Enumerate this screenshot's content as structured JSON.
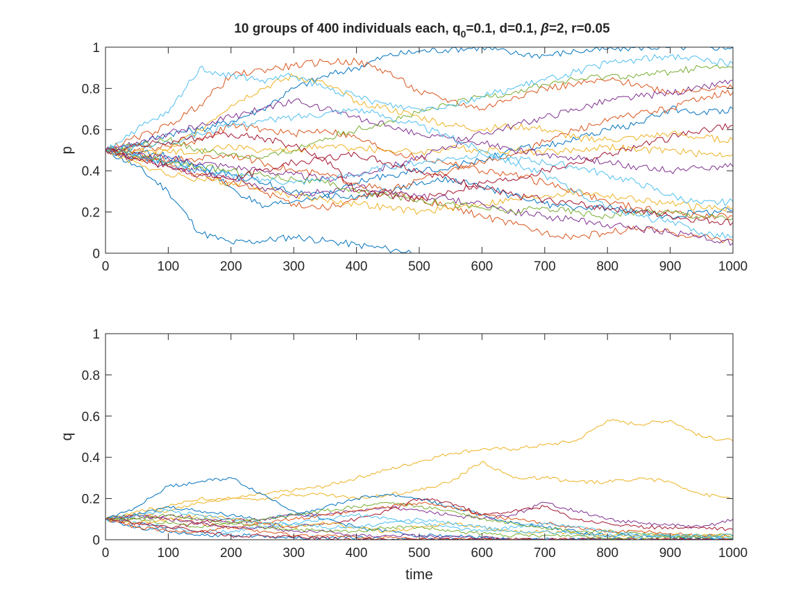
{
  "figure": {
    "title_main": "10 groups of 400 individuals each, q",
    "title_sub": "0",
    "title_rest_1": "=0.1, d=0.1, ",
    "title_beta": "β",
    "title_rest_2": "=2, r=0.05"
  },
  "chart_data": [
    {
      "type": "line",
      "ylabel": "p",
      "xlabel": "",
      "xlim": [
        0,
        1000
      ],
      "ylim": [
        0,
        1
      ],
      "x_ticks": [
        "0",
        "100",
        "200",
        "300",
        "400",
        "500",
        "600",
        "700",
        "800",
        "900",
        "1000"
      ],
      "y_ticks": [
        "0",
        "0.2",
        "0.4",
        "0.6",
        "0.8",
        "1"
      ],
      "grid": false,
      "x": [
        0,
        50,
        100,
        150,
        200,
        250,
        300,
        350,
        400,
        450,
        500,
        550,
        600,
        650,
        700,
        750,
        800,
        850,
        900,
        950,
        1000
      ],
      "series": [
        {
          "color": "#0072BD",
          "values": [
            0.5,
            0.42,
            0.3,
            0.1,
            0.05,
            0.06,
            0.08,
            0.06,
            0.04,
            0.02,
            0.0,
            null,
            null,
            null,
            null,
            null,
            null,
            null,
            null,
            null,
            null
          ]
        },
        {
          "color": "#0072BD",
          "values": [
            0.5,
            0.53,
            0.58,
            0.6,
            0.64,
            0.7,
            0.8,
            0.86,
            0.9,
            0.96,
            0.98,
            0.99,
            1.0,
            0.97,
            0.96,
            0.98,
            0.99,
            1.0,
            1.0,
            1.0,
            1.0
          ]
        },
        {
          "color": "#0072BD",
          "values": [
            0.5,
            0.47,
            0.44,
            0.42,
            0.32,
            0.22,
            0.25,
            0.28,
            0.34,
            0.38,
            0.4,
            0.42,
            0.45,
            0.5,
            0.52,
            0.55,
            0.6,
            0.63,
            0.7,
            0.68,
            0.7
          ]
        },
        {
          "color": "#0072BD",
          "values": [
            0.5,
            0.49,
            0.47,
            0.43,
            0.38,
            0.34,
            0.3,
            0.28,
            0.27,
            0.3,
            0.34,
            0.36,
            0.32,
            0.28,
            0.24,
            0.22,
            0.22,
            0.2,
            0.18,
            0.2,
            0.21
          ]
        },
        {
          "color": "#D95319",
          "values": [
            0.5,
            0.56,
            0.62,
            0.72,
            0.86,
            0.89,
            0.91,
            0.93,
            0.93,
            0.88,
            0.78,
            0.74,
            0.7,
            0.76,
            0.8,
            0.82,
            0.84,
            0.82,
            0.78,
            0.8,
            0.8
          ]
        },
        {
          "color": "#D95319",
          "values": [
            0.5,
            0.5,
            0.52,
            0.55,
            0.62,
            0.6,
            0.58,
            0.6,
            0.56,
            0.5,
            0.46,
            0.44,
            0.4,
            0.38,
            0.34,
            0.3,
            0.25,
            0.22,
            0.2,
            0.18,
            0.18
          ]
        },
        {
          "color": "#D95319",
          "values": [
            0.5,
            0.47,
            0.43,
            0.38,
            0.34,
            0.3,
            0.24,
            0.22,
            0.26,
            0.3,
            0.36,
            0.4,
            0.44,
            0.48,
            0.54,
            0.6,
            0.64,
            0.68,
            0.7,
            0.76,
            0.78
          ]
        },
        {
          "color": "#D95319",
          "values": [
            0.5,
            0.48,
            0.45,
            0.46,
            0.48,
            0.44,
            0.4,
            0.38,
            0.34,
            0.3,
            0.26,
            0.22,
            0.18,
            0.14,
            0.1,
            0.08,
            0.1,
            0.12,
            0.1,
            0.08,
            0.06
          ]
        },
        {
          "color": "#EDB120",
          "values": [
            0.5,
            0.5,
            0.49,
            0.5,
            0.52,
            0.5,
            0.5,
            0.52,
            0.51,
            0.5,
            0.49,
            0.51,
            0.5,
            0.5,
            0.49,
            0.5,
            0.52,
            0.5,
            0.5,
            0.48,
            0.48
          ]
        },
        {
          "color": "#EDB120",
          "values": [
            0.5,
            0.45,
            0.5,
            0.6,
            0.72,
            0.8,
            0.86,
            0.82,
            0.74,
            0.7,
            0.66,
            0.62,
            0.6,
            0.62,
            0.6,
            0.56,
            0.55,
            0.56,
            0.58,
            0.56,
            0.55
          ]
        },
        {
          "color": "#EDB120",
          "values": [
            0.5,
            0.44,
            0.38,
            0.36,
            0.34,
            0.32,
            0.28,
            0.26,
            0.24,
            0.22,
            0.2,
            0.22,
            0.24,
            0.26,
            0.28,
            0.3,
            0.28,
            0.26,
            0.24,
            0.22,
            0.22
          ]
        },
        {
          "color": "#7E2F8E",
          "values": [
            0.5,
            0.54,
            0.58,
            0.62,
            0.66,
            0.7,
            0.74,
            0.7,
            0.66,
            0.62,
            0.58,
            0.56,
            0.54,
            0.5,
            0.48,
            0.46,
            0.44,
            0.42,
            0.4,
            0.42,
            0.42
          ]
        },
        {
          "color": "#7E2F8E",
          "values": [
            0.5,
            0.48,
            0.46,
            0.44,
            0.42,
            0.4,
            0.38,
            0.36,
            0.38,
            0.42,
            0.46,
            0.52,
            0.58,
            0.62,
            0.66,
            0.7,
            0.74,
            0.76,
            0.78,
            0.8,
            0.84
          ]
        },
        {
          "color": "#7E2F8E",
          "values": [
            0.5,
            0.46,
            0.42,
            0.4,
            0.36,
            0.32,
            0.28,
            0.3,
            0.32,
            0.3,
            0.28,
            0.26,
            0.24,
            0.2,
            0.18,
            0.16,
            0.14,
            0.12,
            0.1,
            0.08,
            0.05
          ]
        },
        {
          "color": "#77AC30",
          "values": [
            0.5,
            0.52,
            0.55,
            0.5,
            0.48,
            0.46,
            0.5,
            0.56,
            0.6,
            0.64,
            0.68,
            0.72,
            0.76,
            0.78,
            0.82,
            0.84,
            0.86,
            0.86,
            0.88,
            0.9,
            0.9
          ]
        },
        {
          "color": "#77AC30",
          "values": [
            0.5,
            0.47,
            0.44,
            0.42,
            0.4,
            0.38,
            0.36,
            0.34,
            0.3,
            0.28,
            0.26,
            0.24,
            0.22,
            0.2,
            0.22,
            0.2,
            0.18,
            0.2,
            0.2,
            0.18,
            0.17
          ]
        },
        {
          "color": "#4DBEEE",
          "values": [
            0.5,
            0.6,
            0.68,
            0.9,
            0.86,
            0.84,
            0.86,
            0.8,
            0.76,
            0.72,
            0.7,
            0.72,
            0.76,
            0.8,
            0.84,
            0.88,
            0.92,
            0.94,
            0.96,
            0.94,
            0.92
          ]
        },
        {
          "color": "#4DBEEE",
          "values": [
            0.5,
            0.52,
            0.54,
            0.58,
            0.62,
            0.64,
            0.66,
            0.68,
            0.7,
            0.66,
            0.62,
            0.56,
            0.5,
            0.44,
            0.38,
            0.3,
            0.22,
            0.18,
            0.15,
            0.1,
            0.08
          ]
        },
        {
          "color": "#4DBEEE",
          "values": [
            0.5,
            0.48,
            0.44,
            0.4,
            0.38,
            0.36,
            0.34,
            0.36,
            0.38,
            0.42,
            0.44,
            0.46,
            0.48,
            0.46,
            0.44,
            0.42,
            0.38,
            0.34,
            0.28,
            0.24,
            0.25
          ]
        },
        {
          "color": "#A2142F",
          "values": [
            0.5,
            0.52,
            0.54,
            0.56,
            0.58,
            0.56,
            0.52,
            0.46,
            0.3,
            0.28,
            0.26,
            0.3,
            0.34,
            0.36,
            0.4,
            0.44,
            0.48,
            0.52,
            0.56,
            0.6,
            0.62
          ]
        },
        {
          "color": "#A2142F",
          "values": [
            0.5,
            0.46,
            0.42,
            0.38,
            0.36,
            0.4,
            0.44,
            0.46,
            0.48,
            0.44,
            0.4,
            0.36,
            0.32,
            0.28,
            0.26,
            0.24,
            0.22,
            0.2,
            0.18,
            0.16,
            0.15
          ]
        }
      ]
    },
    {
      "type": "line",
      "ylabel": "q",
      "xlabel": "time",
      "xlim": [
        0,
        1000
      ],
      "ylim": [
        0,
        1
      ],
      "x_ticks": [
        "0",
        "100",
        "200",
        "300",
        "400",
        "500",
        "600",
        "700",
        "800",
        "900",
        "1000"
      ],
      "y_ticks": [
        "0",
        "0.2",
        "0.4",
        "0.6",
        "0.8",
        "1"
      ],
      "grid": false,
      "x": [
        0,
        50,
        100,
        150,
        200,
        250,
        300,
        350,
        400,
        450,
        500,
        550,
        600,
        650,
        700,
        750,
        800,
        850,
        900,
        950,
        1000
      ],
      "series": [
        {
          "color": "#EDB120",
          "values": [
            0.1,
            0.14,
            0.16,
            0.2,
            0.2,
            0.22,
            0.24,
            0.26,
            0.3,
            0.34,
            0.38,
            0.42,
            0.44,
            0.44,
            0.46,
            0.48,
            0.58,
            0.56,
            0.58,
            0.5,
            0.48
          ]
        },
        {
          "color": "#EDB120",
          "values": [
            0.1,
            0.12,
            0.14,
            0.18,
            0.2,
            0.2,
            0.22,
            0.22,
            0.2,
            0.22,
            0.24,
            0.28,
            0.38,
            0.3,
            0.3,
            0.28,
            0.28,
            0.3,
            0.28,
            0.22,
            0.2
          ]
        },
        {
          "color": "#0072BD",
          "values": [
            0.1,
            0.16,
            0.26,
            0.28,
            0.3,
            0.22,
            0.14,
            0.1,
            0.06,
            0.04,
            0.02,
            0.02,
            0.01,
            0.0,
            0.0,
            0.0,
            0.0,
            0.0,
            0.0,
            0.0,
            0.0
          ]
        },
        {
          "color": "#0072BD",
          "values": [
            0.1,
            0.12,
            0.16,
            0.14,
            0.12,
            0.1,
            0.12,
            0.16,
            0.2,
            0.22,
            0.2,
            0.16,
            0.12,
            0.08,
            0.06,
            0.04,
            0.02,
            0.02,
            0.01,
            0.01,
            0.0
          ]
        },
        {
          "color": "#7E2F8E",
          "values": [
            0.1,
            0.1,
            0.12,
            0.1,
            0.08,
            0.1,
            0.12,
            0.12,
            0.14,
            0.16,
            0.14,
            0.12,
            0.1,
            0.12,
            0.18,
            0.14,
            0.1,
            0.08,
            0.07,
            0.06,
            0.1
          ]
        },
        {
          "color": "#A2142F",
          "values": [
            0.1,
            0.08,
            0.06,
            0.08,
            0.1,
            0.08,
            0.06,
            0.08,
            0.1,
            0.14,
            0.2,
            0.18,
            0.12,
            0.14,
            0.16,
            0.1,
            0.08,
            0.06,
            0.06,
            0.06,
            0.05
          ]
        },
        {
          "color": "#77AC30",
          "values": [
            0.1,
            0.1,
            0.08,
            0.06,
            0.08,
            0.1,
            0.12,
            0.14,
            0.16,
            0.18,
            0.16,
            0.14,
            0.1,
            0.08,
            0.06,
            0.04,
            0.04,
            0.03,
            0.02,
            0.02,
            0.02
          ]
        },
        {
          "color": "#D95319",
          "values": [
            0.1,
            0.12,
            0.1,
            0.08,
            0.06,
            0.08,
            0.1,
            0.12,
            0.14,
            0.16,
            0.18,
            0.16,
            0.12,
            0.1,
            0.08,
            0.06,
            0.04,
            0.04,
            0.03,
            0.02,
            0.02
          ]
        },
        {
          "color": "#4DBEEE",
          "values": [
            0.1,
            0.08,
            0.06,
            0.04,
            0.04,
            0.06,
            0.08,
            0.1,
            0.12,
            0.1,
            0.08,
            0.06,
            0.04,
            0.06,
            0.08,
            0.06,
            0.04,
            0.02,
            0.02,
            0.01,
            0.01
          ]
        },
        {
          "color": "#EDB120",
          "values": [
            0.1,
            0.08,
            0.1,
            0.12,
            0.1,
            0.08,
            0.06,
            0.08,
            0.06,
            0.04,
            0.06,
            0.08,
            0.06,
            0.04,
            0.04,
            0.03,
            0.02,
            0.02,
            0.02,
            0.02,
            0.02
          ]
        },
        {
          "color": "#0072BD",
          "values": [
            0.1,
            0.06,
            0.04,
            0.02,
            0.02,
            0.02,
            0.01,
            0.01,
            0.01,
            0.0,
            0.0,
            0.0,
            0.0,
            0.0,
            0.0,
            0.0,
            0.0,
            0.0,
            0.0,
            0.0,
            0.0
          ]
        },
        {
          "color": "#D95319",
          "values": [
            0.1,
            0.06,
            0.04,
            0.04,
            0.06,
            0.04,
            0.02,
            0.02,
            0.01,
            0.01,
            0.0,
            0.0,
            0.0,
            0.0,
            0.0,
            0.0,
            0.0,
            0.0,
            0.0,
            0.0,
            0.0
          ]
        },
        {
          "color": "#7E2F8E",
          "values": [
            0.1,
            0.12,
            0.1,
            0.08,
            0.06,
            0.06,
            0.04,
            0.04,
            0.02,
            0.02,
            0.02,
            0.01,
            0.01,
            0.0,
            0.0,
            0.0,
            0.0,
            0.0,
            0.0,
            0.0,
            0.0
          ]
        },
        {
          "color": "#77AC30",
          "values": [
            0.1,
            0.1,
            0.12,
            0.1,
            0.08,
            0.06,
            0.05,
            0.04,
            0.04,
            0.06,
            0.06,
            0.04,
            0.03,
            0.02,
            0.02,
            0.02,
            0.01,
            0.01,
            0.01,
            0.01,
            0.01
          ]
        },
        {
          "color": "#4DBEEE",
          "values": [
            0.1,
            0.12,
            0.14,
            0.12,
            0.1,
            0.08,
            0.08,
            0.06,
            0.06,
            0.08,
            0.1,
            0.08,
            0.06,
            0.04,
            0.04,
            0.03,
            0.02,
            0.02,
            0.02,
            0.02,
            0.02
          ]
        },
        {
          "color": "#A2142F",
          "values": [
            0.1,
            0.08,
            0.06,
            0.04,
            0.02,
            0.02,
            0.01,
            0.01,
            0.0,
            0.0,
            0.0,
            0.0,
            0.0,
            0.0,
            0.0,
            0.0,
            0.0,
            0.0,
            0.0,
            0.0,
            0.0
          ]
        }
      ]
    }
  ]
}
